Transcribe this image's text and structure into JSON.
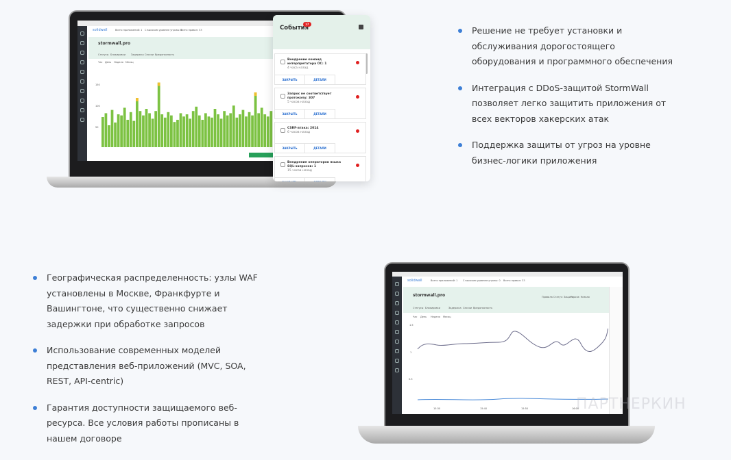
{
  "features_top": [
    "Решение не требует установки и обслуживания дорогостоящего оборудования и программного обеспечения",
    "Интеграция с DDoS-защитой StormWall позволяет легко защитить приложения от всех векторов хакерских атак",
    "Поддержка защиты от угроз на уровне бизнес-логики приложения"
  ],
  "features_bottom": [
    "Географическая распределенность: узлы WAF установлены в Москве, Франкфурте и Вашингтоне, что существенно снижает задержки при обработке запросов",
    "Использование современных моделей представления веб-приложений (MVC, SOA, REST, API-centric)",
    "Гарантия доступности защищаемого веб-ресурса. Все условия работы прописаны в нашем договоре"
  ],
  "app": {
    "logo": "solidwall",
    "stats": [
      "Всего приложений: 1",
      "С высоким уровнем угрозы: 0",
      "Всего правил: 33"
    ],
    "site": "stormwall.pro",
    "status": [
      "Правила",
      "Статус: Защита",
      "Угроза: Низкая"
    ],
    "tabs": [
      "Статусы",
      "Блокировки",
      "Задержка",
      "Сессии",
      "Вредоносность"
    ],
    "periods": [
      "Час",
      "День",
      "Неделя",
      "Месяц"
    ],
    "y_ticks_bars": [
      "150",
      "100",
      "50"
    ],
    "y_ticks_line": [
      "1.5",
      "1",
      "0.5"
    ],
    "x_ticks": [
      "15:30",
      "15:40",
      "15:50",
      "16:00"
    ],
    "bars": [
      55,
      62,
      40,
      68,
      45,
      60,
      58,
      72,
      50,
      64,
      48,
      90,
      66,
      58,
      70,
      62,
      52,
      66,
      118,
      60,
      54,
      64,
      58,
      46,
      50,
      62,
      56,
      60,
      52,
      66,
      74,
      58,
      50,
      62,
      56,
      54,
      70,
      60,
      52,
      66,
      58,
      62,
      76,
      54,
      60,
      68,
      56,
      64,
      58,
      100,
      62,
      72,
      60,
      56,
      66
    ],
    "accent": "#7cc242",
    "warn": "#f0c030"
  },
  "events": {
    "title": "События",
    "badge": "17",
    "items": [
      {
        "title": "Внедрение команд интерпретатора ОС: 1",
        "ago": "4 часа назад"
      },
      {
        "title": "Запрос не соответствует протоколу: 307",
        "ago": "5 часов назад"
      },
      {
        "title": "CSRF-атака: 2014",
        "ago": "6 часов назад"
      },
      {
        "title": "Внедрение операторов языка SQL-запросов: 1",
        "ago": "15 часов назад"
      }
    ],
    "close": "ЗАКРЫТЬ",
    "details": "ДЕТАЛИ"
  },
  "watermark": "ПАРТНЕРКИН"
}
